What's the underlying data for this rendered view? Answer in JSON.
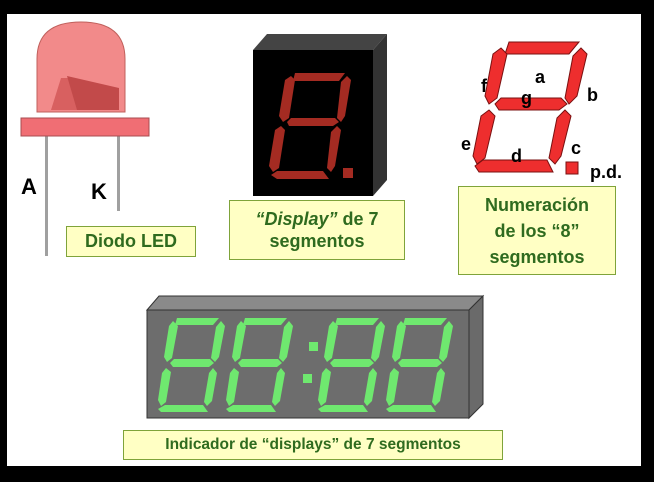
{
  "led": {
    "anode_label": "A",
    "cathode_label": "K",
    "caption": "Diodo LED"
  },
  "single_display": {
    "digit": "8.",
    "caption_italic": "“Display”",
    "caption_rest_line1": " de 7",
    "caption_line2": "segmentos"
  },
  "segment_numbering": {
    "labels": {
      "a": "a",
      "b": "b",
      "c": "c",
      "d": "d",
      "e": "e",
      "f": "f",
      "g": "g",
      "dp": "p.d."
    },
    "caption_line1": "Numeración",
    "caption_line2": "de los “8”",
    "caption_line3": "segmentos"
  },
  "clock_display": {
    "digits": [
      "8",
      "8",
      "8",
      "8"
    ],
    "colon": ":",
    "caption": "Indicador de “displays” de 7 segmentos"
  },
  "colors": {
    "led_body": "#f08080",
    "segment_red": "#a0201a",
    "segment_numbering_red": "#ee2b2b",
    "clock_green": "#66ee66",
    "caption_bg": "#ffffc4",
    "caption_text": "#2f6b1f"
  }
}
